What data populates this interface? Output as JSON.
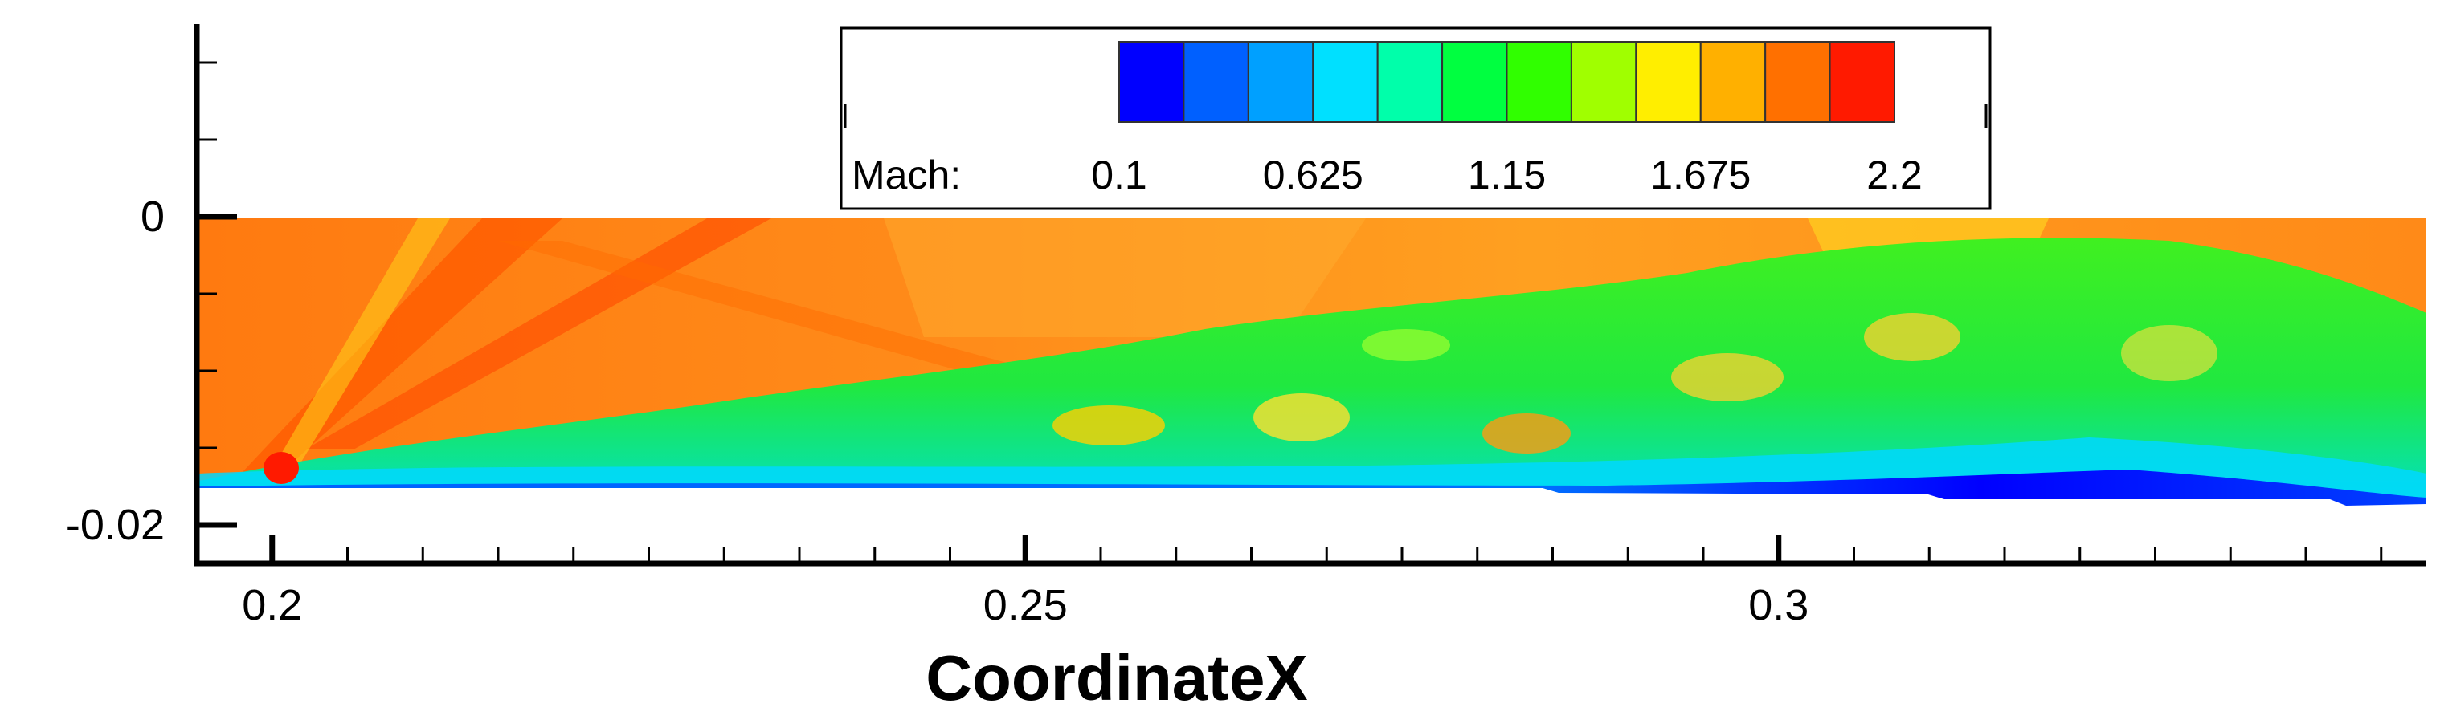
{
  "chart_data": {
    "type": "heatmap",
    "title": "",
    "xlabel": "CoordinateX",
    "ylabel": "",
    "x_ticks": [
      "0.2",
      "0.25",
      "0.3"
    ],
    "x_tick_values": [
      0.2,
      0.25,
      0.3
    ],
    "y_ticks": [
      "0",
      "-0.02"
    ],
    "y_tick_values": [
      0,
      -0.02
    ],
    "xlim": [
      0.195,
      0.343
    ],
    "ylim": [
      -0.0225,
      0.0125
    ],
    "grid": false,
    "colorbar": {
      "variable_label": "Mach:",
      "tick_labels": [
        "0.1",
        "0.625",
        "1.15",
        "1.675",
        "2.2"
      ],
      "tick_values": [
        0.1,
        0.625,
        1.15,
        1.675,
        2.2
      ],
      "range": [
        0.1,
        2.2
      ],
      "levels": 12,
      "placement": "top-center",
      "colors": [
        "#0000ff",
        "#0060ff",
        "#00a0ff",
        "#00e0ff",
        "#00ffaa",
        "#00ff40",
        "#30ff00",
        "#a0ff00",
        "#ffee00",
        "#ffb000",
        "#ff7000",
        "#ff1a00"
      ]
    },
    "field": {
      "description_colors": {
        "freestream": "#ff8a10",
        "shock_layer": "#ff5a00",
        "mixing_layer": "#30e830",
        "near_wall": "#00d8ff",
        "wall_low_speed": "#0010ff"
      }
    }
  }
}
